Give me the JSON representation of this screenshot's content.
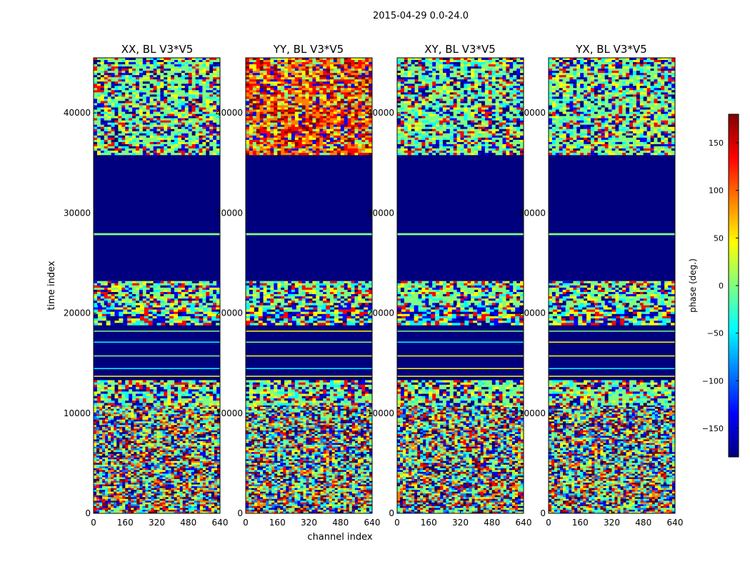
{
  "figure": {
    "suptitle": "2015-04-29 0.0-24.0"
  },
  "colors": {
    "background": "#ffffff",
    "frame": "#000000",
    "jet": [
      "#00007f",
      "#0000ff",
      "#007fff",
      "#00ffff",
      "#7fff7f",
      "#ffff00",
      "#ff7f00",
      "#ff0000",
      "#7f0000"
    ]
  },
  "chart_data": [
    {
      "type": "heatmap",
      "title": "XX, BL V3*V5",
      "xlabel": "",
      "ylabel": "time index",
      "xlim": [
        0,
        640
      ],
      "ylim": [
        0,
        45500
      ],
      "xticks": [
        "0",
        "160",
        "320",
        "480",
        "640"
      ],
      "yticks": [
        "0",
        "10000",
        "20000",
        "30000",
        "40000"
      ],
      "xtick_values": [
        0,
        160,
        320,
        480,
        640
      ],
      "ytick_values": [
        0,
        10000,
        20000,
        30000,
        40000
      ],
      "regions": [
        {
          "y_from": 0,
          "y_to": 10800,
          "pattern": "noisy"
        },
        {
          "y_from": 10800,
          "y_to": 13300,
          "pattern": "mixed"
        },
        {
          "y_from": 13300,
          "y_to": 18800,
          "pattern": "dark-blue-with-lines"
        },
        {
          "y_from": 18800,
          "y_to": 20800,
          "pattern": "fringes"
        },
        {
          "y_from": 20800,
          "y_to": 23200,
          "pattern": "mixed"
        },
        {
          "y_from": 23200,
          "y_to": 35800,
          "pattern": "dark-blue"
        },
        {
          "y_from": 35800,
          "y_to": 45500,
          "pattern": "mixed"
        }
      ]
    },
    {
      "type": "heatmap",
      "title": "YY, BL V3*V5",
      "xlabel": "channel index",
      "ylabel": "",
      "xlim": [
        0,
        640
      ],
      "ylim": [
        0,
        45500
      ],
      "xticks": [
        "0",
        "160",
        "320",
        "480",
        "640"
      ],
      "yticks": [
        "0",
        "10000",
        "20000",
        "30000",
        "40000"
      ],
      "xtick_values": [
        0,
        160,
        320,
        480,
        640
      ],
      "ytick_values": [
        0,
        10000,
        20000,
        30000,
        40000
      ],
      "regions": [
        {
          "y_from": 0,
          "y_to": 10800,
          "pattern": "noisy"
        },
        {
          "y_from": 10800,
          "y_to": 13300,
          "pattern": "mixed"
        },
        {
          "y_from": 13300,
          "y_to": 18800,
          "pattern": "dark-blue-with-lines"
        },
        {
          "y_from": 18800,
          "y_to": 20800,
          "pattern": "fringes"
        },
        {
          "y_from": 20800,
          "y_to": 23200,
          "pattern": "mixed"
        },
        {
          "y_from": 23200,
          "y_to": 35800,
          "pattern": "dark-blue"
        },
        {
          "y_from": 35800,
          "y_to": 45500,
          "pattern": "red-mixed"
        }
      ]
    },
    {
      "type": "heatmap",
      "title": "XY, BL V3*V5",
      "xlabel": "",
      "ylabel": "",
      "xlim": [
        0,
        640
      ],
      "ylim": [
        0,
        45500
      ],
      "xticks": [
        "0",
        "160",
        "320",
        "480",
        "640"
      ],
      "yticks": [
        "0",
        "10000",
        "20000",
        "30000",
        "40000"
      ],
      "xtick_values": [
        0,
        160,
        320,
        480,
        640
      ],
      "ytick_values": [
        0,
        10000,
        20000,
        30000,
        40000
      ],
      "regions": [
        {
          "y_from": 0,
          "y_to": 10800,
          "pattern": "noisy"
        },
        {
          "y_from": 10800,
          "y_to": 13300,
          "pattern": "mixed"
        },
        {
          "y_from": 13300,
          "y_to": 18800,
          "pattern": "dark-blue-with-lines"
        },
        {
          "y_from": 18800,
          "y_to": 20800,
          "pattern": "fringes"
        },
        {
          "y_from": 20800,
          "y_to": 23200,
          "pattern": "mixed"
        },
        {
          "y_from": 23200,
          "y_to": 35800,
          "pattern": "dark-blue"
        },
        {
          "y_from": 35800,
          "y_to": 45500,
          "pattern": "mixed"
        }
      ]
    },
    {
      "type": "heatmap",
      "title": "YX, BL V3*V5",
      "xlabel": "",
      "ylabel": "",
      "xlim": [
        0,
        640
      ],
      "ylim": [
        0,
        45500
      ],
      "xticks": [
        "0",
        "160",
        "320",
        "480",
        "640"
      ],
      "yticks": [
        "0",
        "10000",
        "20000",
        "30000",
        "40000"
      ],
      "xtick_values": [
        0,
        160,
        320,
        480,
        640
      ],
      "ytick_values": [
        0,
        10000,
        20000,
        30000,
        40000
      ],
      "regions": [
        {
          "y_from": 0,
          "y_to": 10800,
          "pattern": "noisy"
        },
        {
          "y_from": 10800,
          "y_to": 13300,
          "pattern": "mixed"
        },
        {
          "y_from": 13300,
          "y_to": 18800,
          "pattern": "dark-blue-with-lines"
        },
        {
          "y_from": 18800,
          "y_to": 20800,
          "pattern": "fringes"
        },
        {
          "y_from": 20800,
          "y_to": 23200,
          "pattern": "mixed"
        },
        {
          "y_from": 23200,
          "y_to": 35800,
          "pattern": "dark-blue"
        },
        {
          "y_from": 35800,
          "y_to": 45500,
          "pattern": "mixed"
        }
      ]
    }
  ],
  "colorbar": {
    "label": "phase (deg.)",
    "range": [
      -180,
      180
    ],
    "ticks": [
      -150,
      -100,
      -50,
      0,
      50,
      100,
      150
    ],
    "tick_labels": [
      "−150",
      "−100",
      "−50",
      "0",
      "50",
      "100",
      "150"
    ]
  }
}
